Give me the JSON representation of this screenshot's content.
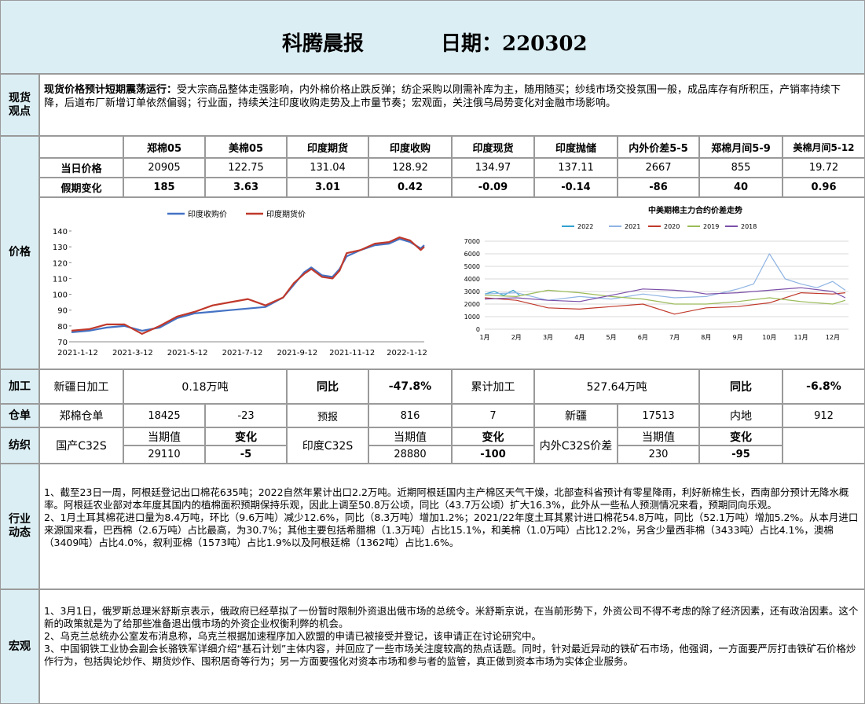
{
  "header": {
    "title": "科腾晨报",
    "date_label": "日期：220302"
  },
  "spot": {
    "label": "现货观点",
    "headline": "现货价格预计短期震荡运行：",
    "body": "受大宗商品整体走强影响，内外棉价格止跌反弹；纺企采购以刚需补库为主，随用随买；纱线市场交投氛围一般，成品库存有所积压，产销率持续下降，后道布厂新增订单依然偏弱；行业面，持续关注印度收购走势及上市量节奏；宏观面，关注俄乌局势变化对金融市场影响。"
  },
  "price": {
    "label": "价格",
    "columns": [
      "郑棉05",
      "美棉05",
      "印度期货",
      "印度收购",
      "印度现货",
      "印度抛储",
      "内外价差5-5",
      "郑棉月间5-9",
      "美棉月间5-12"
    ],
    "row1_label": "当日价格",
    "row1": [
      "20905",
      "122.75",
      "131.04",
      "128.92",
      "134.97",
      "137.11",
      "2667",
      "855",
      "19.72"
    ],
    "row2_label": "假期变化",
    "row2": [
      "185",
      "3.63",
      "3.01",
      "0.42",
      "-0.09",
      "-0.14",
      "-86",
      "40",
      "0.96"
    ]
  },
  "chart_data": [
    {
      "type": "line",
      "title": "",
      "legend": [
        "印度收购价",
        "印度期货价"
      ],
      "legend_position": "top",
      "colors": [
        "#4472c4",
        "#c0392b"
      ],
      "ylim": [
        70,
        140
      ],
      "yticks": [
        70,
        80,
        90,
        100,
        110,
        120,
        130,
        140
      ],
      "xticks": [
        "2021-1-12",
        "2021-3-12",
        "2021-5-12",
        "2021-7-12",
        "2021-9-12",
        "2021-11-12",
        "2022-1-12"
      ],
      "x_index_range": [
        0,
        100
      ],
      "series": [
        {
          "name": "印度收购价",
          "x": [
            0,
            5,
            10,
            15,
            20,
            25,
            30,
            35,
            40,
            45,
            50,
            55,
            60,
            63,
            66,
            68,
            71,
            74,
            76,
            78,
            82,
            86,
            90,
            93,
            96,
            99,
            100
          ],
          "y": [
            76,
            77,
            79,
            80,
            77,
            79,
            85,
            88,
            89,
            90,
            91,
            92,
            98,
            106,
            114,
            117,
            112,
            111,
            116,
            124,
            128,
            131,
            132,
            135,
            133,
            129,
            131
          ]
        },
        {
          "name": "印度期货价",
          "x": [
            0,
            5,
            10,
            15,
            20,
            25,
            30,
            35,
            40,
            45,
            50,
            55,
            60,
            63,
            66,
            68,
            71,
            74,
            76,
            78,
            82,
            86,
            90,
            93,
            96,
            99,
            100
          ],
          "y": [
            77,
            78,
            81,
            81,
            75,
            80,
            86,
            89,
            93,
            95,
            97,
            93,
            98,
            107,
            113,
            116,
            111,
            110,
            115,
            126,
            128,
            132,
            133,
            136,
            134,
            128,
            130
          ]
        }
      ]
    },
    {
      "type": "line",
      "title": "中美期棉主力合约价差走势",
      "legend": [
        "2022",
        "2021",
        "2020",
        "2019",
        "2018"
      ],
      "legend_position": "top",
      "colors": [
        "#31a0d0",
        "#8fb4e3",
        "#c0392b",
        "#9bbb59",
        "#7b4fa8"
      ],
      "ylim": [
        0,
        7000
      ],
      "yticks": [
        0,
        1000,
        2000,
        3000,
        4000,
        5000,
        6000,
        7000
      ],
      "xticks": [
        "1月",
        "2月",
        "3月",
        "4月",
        "5月",
        "6月",
        "7月",
        "8月",
        "9月",
        "10月",
        "11月",
        "12月"
      ],
      "series": [
        {
          "name": "2022",
          "x": [
            1,
            1.3,
            1.6,
            1.9,
            2.1
          ],
          "y": [
            2800,
            3000,
            2700,
            3100,
            2700
          ]
        },
        {
          "name": "2021",
          "x": [
            1,
            2,
            3,
            4,
            5,
            6,
            7,
            8,
            9,
            9.5,
            10,
            10.5,
            11,
            11.5,
            12,
            12.4
          ],
          "y": [
            2800,
            2900,
            2300,
            2600,
            2400,
            2800,
            2500,
            2600,
            3200,
            3600,
            6000,
            4000,
            3600,
            3300,
            3800,
            3100
          ]
        },
        {
          "name": "2020",
          "x": [
            1,
            2,
            3,
            4,
            5,
            6,
            7,
            8,
            9,
            10,
            11,
            12,
            12.4
          ],
          "y": [
            2500,
            2300,
            1700,
            1600,
            1800,
            2000,
            1200,
            1700,
            1800,
            2100,
            2900,
            2800,
            2900
          ]
        },
        {
          "name": "2019",
          "x": [
            1,
            2,
            3,
            4,
            5,
            6,
            7,
            8,
            9,
            10,
            11,
            12,
            12.4
          ],
          "y": [
            2700,
            2600,
            3100,
            2900,
            2600,
            2400,
            2000,
            2000,
            2200,
            2500,
            2200,
            2000,
            2300
          ]
        },
        {
          "name": "2018",
          "x": [
            1,
            2,
            3,
            4,
            5,
            6,
            7,
            7.5,
            8,
            9,
            10,
            11,
            12,
            12.4
          ],
          "y": [
            2400,
            2500,
            2300,
            2200,
            2700,
            3200,
            3100,
            3000,
            2800,
            2900,
            3100,
            3300,
            3000,
            2500
          ]
        }
      ]
    }
  ],
  "processing": {
    "label": "加工",
    "xj_label": "新疆日加工",
    "xj_value": "0.18万吨",
    "yoy_label": "同比",
    "yoy_value": "-47.8%",
    "cum_label": "累计加工",
    "cum_value": "527.64万吨",
    "yoy2_label": "同比",
    "yoy2_value": "-6.8%"
  },
  "warehouse": {
    "label": "仓单",
    "c1": "郑棉仓单",
    "c2": "18425",
    "c3": "-23",
    "c4": "预报",
    "c5": "816",
    "c6": "7",
    "c7": "新疆",
    "c8": "17513",
    "c9": "内地",
    "c10": "912"
  },
  "textile": {
    "label": "纺织",
    "domestic_label": "国产C32S",
    "current_label": "当期值",
    "change_label": "变化",
    "domestic_value": "29110",
    "domestic_change": "-5",
    "india_label": "印度C32S",
    "india_value": "28880",
    "india_change": "-100",
    "spread_label": "内外C32S价差",
    "spread_value": "230",
    "spread_change": "-95"
  },
  "industry": {
    "label": "行业动态",
    "p1": "1、截至23日一周，阿根廷登记出口棉花635吨；2022自然年累计出口2.2万吨。近期阿根廷国内主产棉区天气干燥，北部查科省预计有零星降雨，利好新棉生长，西南部分预计无降水概率。阿根廷农业部对本年度其国内的植棉面积预期保持乐观，因此上调至50.8万公顷，同比（43.7万公顷）扩大16.3%，此外从一些私人预测情况来看，预期同向乐观。",
    "p2": "2、1月土耳其棉花进口量为8.4万吨，环比（9.6万吨）减少12.6%，同比（8.3万吨）增加1.2%；2021/22年度土耳其累计进口棉花54.8万吨，同比（52.1万吨）增加5.2%。从本月进口来源国来看，巴西棉（2.6万吨）占比最高，为30.7%；其他主要包括希腊棉（1.3万吨）占比15.1%，和美棉（1.0万吨）占比12.2%，另含少量西非棉（3433吨）占比4.1%，澳棉（3409吨）占比4.0%，叙利亚棉（1573吨）占比1.9%以及阿根廷棉（1362吨）占比1.6%。"
  },
  "macro": {
    "label": "宏观",
    "p1": "1、3月1日，俄罗斯总理米舒斯京表示，俄政府已经草拟了一份暂时限制外资退出俄市场的总统令。米舒斯京说，在当前形势下，外资公司不得不考虑的除了经济因素，还有政治因素。这个新的政策就是为了给那些准备退出俄市场的外资企业权衡利弊的机会。",
    "p2": "2、乌克兰总统办公室发布消息称，乌克兰根据加速程序加入欧盟的申请已被接受并登记，该申请正在讨论研究中。",
    "p3": "3、中国钢铁工业协会副会长骆铁军详细介绍“基石计划”主体内容，并回应了一些市场关注度较高的热点话题。同时，针对最近异动的铁矿石市场，他强调，一方面要严厉打击铁矿石价格炒作行为，包括舆论炒作、期货炒作、囤积居奇等行为；另一方面要强化对资本市场和参与者的监管，真正做到资本市场为实体企业服务。"
  }
}
